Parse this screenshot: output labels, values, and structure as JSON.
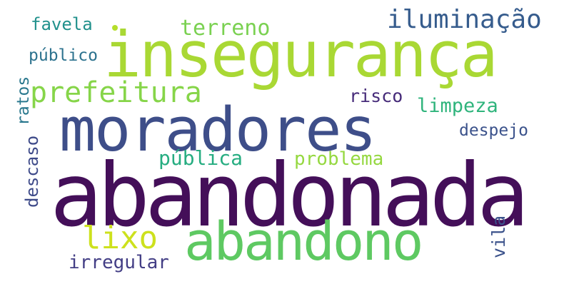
{
  "word_cloud": {
    "words": [
      {
        "text": "abandonada",
        "color": "#440f59"
      },
      {
        "text": "insegurança",
        "color": "#a9d834"
      },
      {
        "text": "moradores",
        "color": "#3e4e89"
      },
      {
        "text": "abandono",
        "color": "#5ec962"
      },
      {
        "text": "prefeitura",
        "color": "#86d549"
      },
      {
        "text": "iluminação",
        "color": "#365c8d"
      },
      {
        "text": "lixo",
        "color": "#cde11d"
      },
      {
        "text": "terreno",
        "color": "#7ad151"
      },
      {
        "text": "favela",
        "color": "#21918c"
      },
      {
        "text": "público",
        "color": "#2c728e"
      },
      {
        "text": "limpeza",
        "color": "#2fb47c"
      },
      {
        "text": "risco",
        "color": "#472c7a"
      },
      {
        "text": "despejo",
        "color": "#3b528b"
      },
      {
        "text": "pública",
        "color": "#26ad81"
      },
      {
        "text": "problema",
        "color": "#95d840"
      },
      {
        "text": "irregular",
        "color": "#433e85"
      },
      {
        "text": "ratos",
        "color": "#2a788e"
      },
      {
        "text": "descaso",
        "color": "#3e4a89"
      },
      {
        "text": "vila",
        "color": "#3b528b"
      }
    ]
  }
}
